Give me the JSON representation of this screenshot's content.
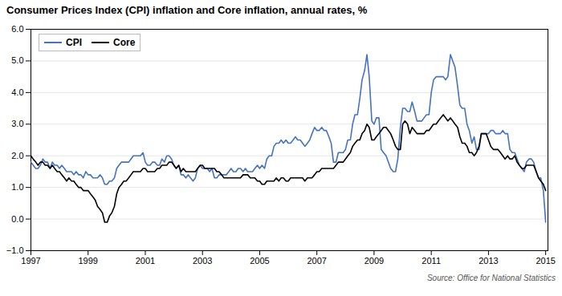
{
  "chart_data": {
    "type": "line",
    "title": "Consumer Prices Index (CPI) inflation and Core inflation, annual rates, %",
    "annotations": [
      "Source: Office for National Statistics"
    ],
    "x": [
      1997.0,
      1997.08,
      1997.17,
      1997.25,
      1997.33,
      1997.42,
      1997.5,
      1997.58,
      1997.67,
      1997.75,
      1997.83,
      1997.92,
      1998.0,
      1998.08,
      1998.17,
      1998.25,
      1998.33,
      1998.42,
      1998.5,
      1998.58,
      1998.67,
      1998.75,
      1998.83,
      1998.92,
      1999.0,
      1999.08,
      1999.17,
      1999.25,
      1999.33,
      1999.42,
      1999.5,
      1999.58,
      1999.67,
      1999.75,
      1999.83,
      1999.92,
      2000.0,
      2000.08,
      2000.17,
      2000.25,
      2000.33,
      2000.42,
      2000.5,
      2000.58,
      2000.67,
      2000.75,
      2000.83,
      2000.92,
      2001.0,
      2001.08,
      2001.17,
      2001.25,
      2001.33,
      2001.42,
      2001.5,
      2001.58,
      2001.67,
      2001.75,
      2001.83,
      2001.92,
      2002.0,
      2002.08,
      2002.17,
      2002.25,
      2002.33,
      2002.42,
      2002.5,
      2002.58,
      2002.67,
      2002.75,
      2002.83,
      2002.92,
      2003.0,
      2003.08,
      2003.17,
      2003.25,
      2003.33,
      2003.42,
      2003.5,
      2003.58,
      2003.67,
      2003.75,
      2003.83,
      2003.92,
      2004.0,
      2004.08,
      2004.17,
      2004.25,
      2004.33,
      2004.42,
      2004.5,
      2004.58,
      2004.67,
      2004.75,
      2004.83,
      2004.92,
      2005.0,
      2005.08,
      2005.17,
      2005.25,
      2005.33,
      2005.42,
      2005.5,
      2005.58,
      2005.67,
      2005.75,
      2005.83,
      2005.92,
      2006.0,
      2006.08,
      2006.17,
      2006.25,
      2006.33,
      2006.42,
      2006.5,
      2006.58,
      2006.67,
      2006.75,
      2006.83,
      2006.92,
      2007.0,
      2007.08,
      2007.17,
      2007.25,
      2007.33,
      2007.42,
      2007.5,
      2007.58,
      2007.67,
      2007.75,
      2007.83,
      2007.92,
      2008.0,
      2008.08,
      2008.17,
      2008.25,
      2008.33,
      2008.42,
      2008.5,
      2008.58,
      2008.67,
      2008.75,
      2008.83,
      2008.92,
      2009.0,
      2009.08,
      2009.17,
      2009.25,
      2009.33,
      2009.42,
      2009.5,
      2009.58,
      2009.67,
      2009.75,
      2009.83,
      2009.92,
      2010.0,
      2010.08,
      2010.17,
      2010.25,
      2010.33,
      2010.42,
      2010.5,
      2010.58,
      2010.67,
      2010.75,
      2010.83,
      2010.92,
      2011.0,
      2011.08,
      2011.17,
      2011.25,
      2011.33,
      2011.42,
      2011.5,
      2011.58,
      2011.67,
      2011.75,
      2011.83,
      2011.92,
      2012.0,
      2012.08,
      2012.17,
      2012.25,
      2012.33,
      2012.42,
      2012.5,
      2012.58,
      2012.67,
      2012.75,
      2012.83,
      2012.92,
      2013.0,
      2013.08,
      2013.17,
      2013.25,
      2013.33,
      2013.42,
      2013.5,
      2013.58,
      2013.67,
      2013.75,
      2013.83,
      2013.92,
      2014.0,
      2014.08,
      2014.17,
      2014.25,
      2014.33,
      2014.42,
      2014.5,
      2014.58,
      2014.67,
      2014.75,
      2014.83,
      2014.92,
      2015.0
    ],
    "series": [
      {
        "name": "CPI",
        "color": "#4472c4",
        "values": [
          1.8,
          1.7,
          1.6,
          1.6,
          1.7,
          1.9,
          1.8,
          1.8,
          1.6,
          1.8,
          1.7,
          1.7,
          1.6,
          1.7,
          1.6,
          1.5,
          1.5,
          1.5,
          1.4,
          1.5,
          1.4,
          1.4,
          1.3,
          1.5,
          1.4,
          1.4,
          1.3,
          1.3,
          1.3,
          1.4,
          1.3,
          1.1,
          1.1,
          1.2,
          1.2,
          1.3,
          1.6,
          1.7,
          1.8,
          1.8,
          1.8,
          1.8,
          1.9,
          2.0,
          2.0,
          2.0,
          2.0,
          2.1,
          1.8,
          1.7,
          1.7,
          1.8,
          1.8,
          1.7,
          1.7,
          1.9,
          1.8,
          2.0,
          2.0,
          1.9,
          1.7,
          1.6,
          1.7,
          1.4,
          1.4,
          1.3,
          1.4,
          1.3,
          1.2,
          1.3,
          1.6,
          1.7,
          1.6,
          1.6,
          1.6,
          1.5,
          1.6,
          1.3,
          1.3,
          1.4,
          1.4,
          1.4,
          1.4,
          1.5,
          1.6,
          1.5,
          1.5,
          1.6,
          1.6,
          1.5,
          1.6,
          1.5,
          1.5,
          1.5,
          1.6,
          1.7,
          1.6,
          1.7,
          1.6,
          1.9,
          2.0,
          2.0,
          2.3,
          2.4,
          2.4,
          2.5,
          2.4,
          2.5,
          2.4,
          2.4,
          2.5,
          2.6,
          2.5,
          2.5,
          2.4,
          2.3,
          2.4,
          2.5,
          2.7,
          2.9,
          2.8,
          2.8,
          2.9,
          2.8,
          2.8,
          2.6,
          2.4,
          1.8,
          1.8,
          2.1,
          2.1,
          2.1,
          2.2,
          2.5,
          2.5,
          3.0,
          3.3,
          3.3,
          3.8,
          4.4,
          4.7,
          5.2,
          4.5,
          3.1,
          3.0,
          3.2,
          3.2,
          2.2,
          2.1,
          2.0,
          1.8,
          1.6,
          1.5,
          1.5,
          1.9,
          2.9,
          3.5,
          3.5,
          3.4,
          3.4,
          3.7,
          3.4,
          3.1,
          3.1,
          3.1,
          3.2,
          3.3,
          3.3,
          4.0,
          4.4,
          4.5,
          4.5,
          4.5,
          4.5,
          4.4,
          4.5,
          5.2,
          5.0,
          4.8,
          4.2,
          3.6,
          3.5,
          3.5,
          3.0,
          2.8,
          2.4,
          2.6,
          2.2,
          2.2,
          2.7,
          2.7,
          2.7,
          2.7,
          2.8,
          2.8,
          2.7,
          2.7,
          2.7,
          2.8,
          2.7,
          2.7,
          2.2,
          2.1,
          2.1,
          1.9,
          1.7,
          1.6,
          1.5,
          1.8,
          1.9,
          1.9,
          1.8,
          1.5,
          1.3,
          1.3,
          0.9,
          -0.1
        ]
      },
      {
        "name": "Core",
        "color": "#000000",
        "values": [
          2.0,
          1.9,
          1.8,
          1.7,
          1.8,
          1.8,
          1.7,
          1.7,
          1.6,
          1.7,
          1.6,
          1.5,
          1.5,
          1.4,
          1.3,
          1.2,
          1.3,
          1.2,
          1.2,
          1.1,
          1.0,
          1.0,
          0.9,
          0.9,
          0.9,
          0.8,
          0.7,
          0.6,
          0.4,
          0.3,
          0.2,
          -0.1,
          -0.1,
          0.1,
          0.2,
          0.4,
          0.8,
          1.0,
          1.1,
          1.2,
          1.2,
          1.3,
          1.4,
          1.5,
          1.5,
          1.5,
          1.5,
          1.6,
          1.6,
          1.5,
          1.5,
          1.5,
          1.5,
          1.6,
          1.6,
          1.7,
          1.7,
          1.7,
          1.8,
          1.8,
          1.7,
          1.6,
          1.7,
          1.5,
          1.6,
          1.5,
          1.5,
          1.5,
          1.5,
          1.5,
          1.6,
          1.7,
          1.7,
          1.6,
          1.6,
          1.6,
          1.6,
          1.6,
          1.5,
          1.5,
          1.4,
          1.3,
          1.3,
          1.3,
          1.3,
          1.3,
          1.3,
          1.3,
          1.3,
          1.4,
          1.4,
          1.4,
          1.3,
          1.3,
          1.3,
          1.2,
          1.2,
          1.1,
          1.1,
          1.2,
          1.2,
          1.2,
          1.2,
          1.3,
          1.2,
          1.3,
          1.3,
          1.2,
          1.2,
          1.3,
          1.3,
          1.3,
          1.3,
          1.3,
          1.3,
          1.2,
          1.3,
          1.3,
          1.3,
          1.4,
          1.5,
          1.5,
          1.6,
          1.6,
          1.6,
          1.6,
          1.6,
          1.6,
          1.7,
          1.8,
          1.8,
          1.8,
          1.9,
          2.0,
          2.1,
          2.3,
          2.4,
          2.5,
          2.5,
          2.7,
          2.8,
          3.0,
          2.9,
          2.5,
          2.5,
          2.6,
          2.7,
          2.8,
          2.9,
          2.9,
          2.8,
          2.7,
          2.5,
          2.3,
          2.2,
          2.2,
          3.0,
          3.1,
          3.0,
          2.7,
          2.9,
          2.8,
          2.7,
          2.7,
          2.7,
          2.7,
          2.8,
          2.8,
          2.9,
          3.0,
          3.0,
          3.1,
          3.2,
          3.3,
          3.2,
          3.1,
          3.2,
          3.1,
          3.0,
          2.9,
          2.6,
          2.4,
          2.4,
          2.3,
          2.1,
          2.1,
          2.0,
          2.1,
          2.3,
          2.7,
          2.7,
          2.7,
          2.5,
          2.3,
          2.2,
          2.2,
          2.2,
          2.1,
          2.0,
          1.9,
          2.0,
          1.9,
          1.9,
          2.0,
          1.8,
          1.7,
          1.6,
          1.6,
          1.7,
          1.7,
          1.7,
          1.7,
          1.5,
          1.3,
          1.2,
          1.1,
          0.9
        ]
      }
    ],
    "xlim": [
      1997,
      2015.08
    ],
    "xticks": [
      1997,
      1999,
      2001,
      2003,
      2005,
      2007,
      2009,
      2011,
      2013,
      2015
    ],
    "ylim": [
      -1,
      6
    ],
    "yticks": [
      -1,
      0,
      1,
      2,
      3,
      4,
      5,
      6
    ],
    "grid": true,
    "legend": "upper left"
  }
}
